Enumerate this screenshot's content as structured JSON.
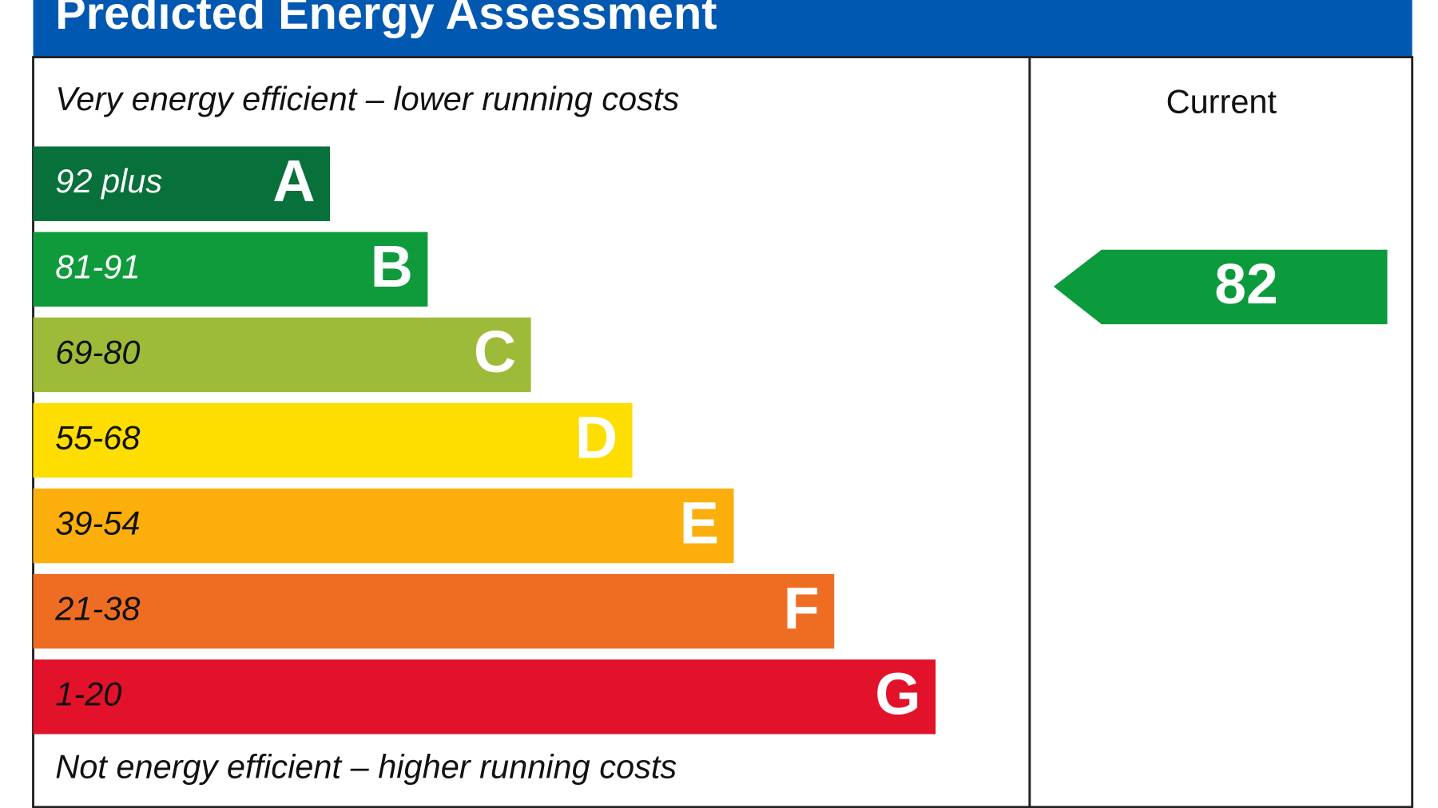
{
  "header": {
    "title": "Predicted Energy Assessment"
  },
  "top_note": "Very energy efficient – lower running costs",
  "bottom_note": "Not energy efficient – higher running costs",
  "column_header": "Current",
  "bands": [
    {
      "range": "92 plus",
      "letter": "A"
    },
    {
      "range": "81-91",
      "letter": "B"
    },
    {
      "range": "69-80",
      "letter": "C"
    },
    {
      "range": "55-68",
      "letter": "D"
    },
    {
      "range": "39-54",
      "letter": "E"
    },
    {
      "range": "21-38",
      "letter": "F"
    },
    {
      "range": "1-20",
      "letter": "G"
    }
  ],
  "current_rating": 82
}
